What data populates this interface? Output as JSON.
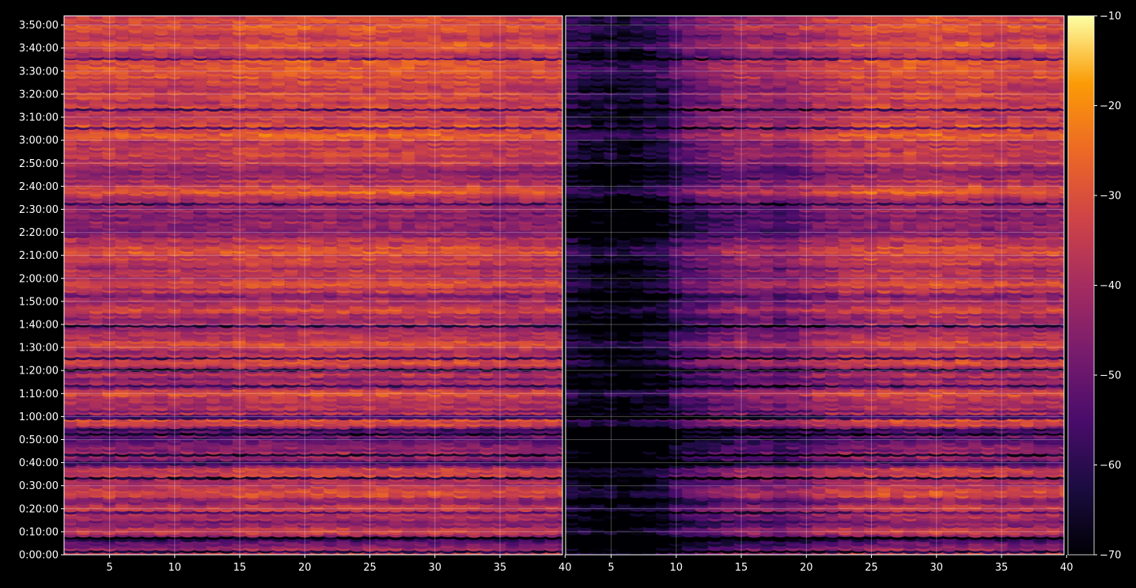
{
  "chart_data": [
    {
      "type": "heatmap",
      "panel": "left",
      "title": "",
      "xlabel": "",
      "ylabel": "",
      "xlim": [
        1.5,
        39.8
      ],
      "xticks": [
        5,
        10,
        15,
        20,
        25,
        30,
        35,
        40
      ],
      "xtick_labels": [
        "5",
        "10",
        "15",
        "20",
        "25",
        "30",
        "35",
        "40"
      ],
      "ylim_seconds": [
        0,
        14040
      ],
      "yticks": [
        "0:00:00",
        "0:10:00",
        "0:20:00",
        "0:30:00",
        "0:40:00",
        "0:50:00",
        "1:00:00",
        "1:10:00",
        "1:20:00",
        "1:30:00",
        "1:40:00",
        "1:50:00",
        "2:00:00",
        "2:10:00",
        "2:20:00",
        "2:30:00",
        "2:40:00",
        "2:50:00",
        "3:00:00",
        "3:10:00",
        "3:20:00",
        "3:30:00",
        "3:40:00",
        "3:50:00"
      ],
      "colormap": "inferno",
      "level_profile_by_row": [
        [
          0,
          -36
        ],
        [
          2,
          -42
        ],
        [
          4,
          -46
        ],
        [
          6,
          -62
        ],
        [
          8,
          -40
        ],
        [
          10,
          -38
        ],
        [
          12,
          -44
        ],
        [
          14,
          -50
        ],
        [
          16,
          -38
        ],
        [
          18,
          -33
        ],
        [
          20,
          -38
        ],
        [
          22,
          -46
        ],
        [
          24,
          -40
        ],
        [
          26,
          -32
        ],
        [
          28,
          -36
        ],
        [
          30,
          -40
        ],
        [
          32,
          -42
        ],
        [
          34,
          -36
        ],
        [
          36,
          -32
        ],
        [
          38,
          -45
        ],
        [
          40,
          -62
        ],
        [
          42,
          -40
        ],
        [
          44,
          -44
        ],
        [
          46,
          -48
        ],
        [
          48,
          -50
        ],
        [
          50,
          -56
        ],
        [
          52,
          -48
        ],
        [
          54,
          -58
        ],
        [
          56,
          -36
        ],
        [
          58,
          -34
        ],
        [
          60,
          -33
        ],
        [
          62,
          -44
        ],
        [
          64,
          -40
        ],
        [
          66,
          -38
        ],
        [
          68,
          -34
        ],
        [
          70,
          -33
        ],
        [
          72,
          -42
        ],
        [
          74,
          -38
        ],
        [
          76,
          -46
        ],
        [
          78,
          -40
        ],
        [
          80,
          -44
        ],
        [
          82,
          -36
        ],
        [
          84,
          -33
        ],
        [
          86,
          -36
        ],
        [
          88,
          -40
        ],
        [
          90,
          -32
        ],
        [
          92,
          -34
        ],
        [
          94,
          -42
        ],
        [
          96,
          -38
        ],
        [
          98,
          -42
        ],
        [
          100,
          -40
        ],
        [
          102,
          -44
        ],
        [
          104,
          -38
        ],
        [
          106,
          -32
        ],
        [
          108,
          -36
        ],
        [
          110,
          -40
        ],
        [
          112,
          -44
        ],
        [
          114,
          -38
        ],
        [
          116,
          -36
        ],
        [
          118,
          -32
        ],
        [
          120,
          -40
        ],
        [
          122,
          -36
        ],
        [
          124,
          -42
        ],
        [
          126,
          -38
        ],
        [
          128,
          -36
        ],
        [
          130,
          -34
        ],
        [
          132,
          -30
        ],
        [
          134,
          -34
        ],
        [
          136,
          -38
        ],
        [
          138,
          -44
        ],
        [
          140,
          -48
        ],
        [
          142,
          -44
        ],
        [
          144,
          -46
        ],
        [
          146,
          -48
        ],
        [
          148,
          -46
        ],
        [
          150,
          -44
        ],
        [
          152,
          -36
        ],
        [
          154,
          -38
        ],
        [
          156,
          -30
        ],
        [
          158,
          -30
        ],
        [
          160,
          -36
        ],
        [
          162,
          -40
        ],
        [
          164,
          -44
        ],
        [
          166,
          -42
        ],
        [
          168,
          -40
        ],
        [
          170,
          -36
        ],
        [
          172,
          -34
        ],
        [
          174,
          -38
        ],
        [
          176,
          -34
        ],
        [
          178,
          -38
        ],
        [
          180,
          -32
        ],
        [
          182,
          -28
        ],
        [
          184,
          -34
        ],
        [
          186,
          -32
        ],
        [
          188,
          -36
        ],
        [
          190,
          -38
        ],
        [
          192,
          -34
        ],
        [
          194,
          -34
        ],
        [
          196,
          -38
        ],
        [
          198,
          -30
        ],
        [
          200,
          -34
        ],
        [
          202,
          -36
        ],
        [
          204,
          -30
        ],
        [
          206,
          -34
        ],
        [
          208,
          -30
        ],
        [
          210,
          -30
        ],
        [
          212,
          -28
        ],
        [
          214,
          -32
        ],
        [
          216,
          -34
        ],
        [
          218,
          -36
        ],
        [
          220,
          -32
        ],
        [
          222,
          -30
        ],
        [
          224,
          -34
        ],
        [
          226,
          -36
        ],
        [
          228,
          -30
        ],
        [
          230,
          -34
        ],
        [
          232,
          -32
        ]
      ],
      "value_range_observed": [
        -70,
        -10
      ]
    },
    {
      "type": "heatmap",
      "panel": "right",
      "title": "",
      "xlabel": "",
      "ylabel": "",
      "xlim": [
        1.5,
        39.8
      ],
      "xticks": [
        5,
        10,
        15,
        20,
        25,
        30,
        35,
        40
      ],
      "xtick_labels": [
        "5",
        "10",
        "15",
        "20",
        "25",
        "30",
        "35",
        "40"
      ],
      "ylim_seconds": [
        0,
        14040
      ],
      "colormap": "inferno",
      "column_attenuation_db": [
        [
          1,
          -24
        ],
        [
          2,
          -26
        ],
        [
          3,
          -28
        ],
        [
          4,
          -30
        ],
        [
          5,
          -30
        ],
        [
          6,
          -32
        ],
        [
          7,
          -30
        ],
        [
          8,
          -28
        ],
        [
          9,
          -26
        ],
        [
          10,
          -20
        ],
        [
          11,
          -16
        ],
        [
          12,
          -14
        ],
        [
          13,
          -12
        ],
        [
          14,
          -10
        ],
        [
          15,
          -10
        ],
        [
          16,
          -10
        ],
        [
          17,
          -10
        ],
        [
          18,
          -12
        ],
        [
          19,
          -10
        ],
        [
          20,
          -8
        ],
        [
          21,
          -6
        ],
        [
          22,
          -4
        ],
        [
          23,
          -3
        ],
        [
          24,
          -2
        ],
        [
          25,
          -2
        ],
        [
          26,
          -1
        ],
        [
          27,
          -1
        ],
        [
          28,
          0
        ],
        [
          29,
          0
        ],
        [
          30,
          0
        ],
        [
          31,
          0
        ],
        [
          32,
          0
        ],
        [
          33,
          0
        ],
        [
          34,
          0
        ],
        [
          35,
          0
        ],
        [
          36,
          0
        ],
        [
          37,
          0
        ],
        [
          38,
          0
        ],
        [
          39,
          0
        ],
        [
          40,
          0
        ]
      ],
      "value_range_observed": [
        -70,
        -10
      ]
    }
  ],
  "colorbar": {
    "colormap": "inferno",
    "range": [
      -70,
      -10
    ],
    "ticks": [
      -10,
      -20,
      -30,
      -40,
      -50,
      -60,
      -70
    ],
    "tick_labels": [
      "−10",
      "−20",
      "−30",
      "−40",
      "−50",
      "−60",
      "−70"
    ]
  }
}
